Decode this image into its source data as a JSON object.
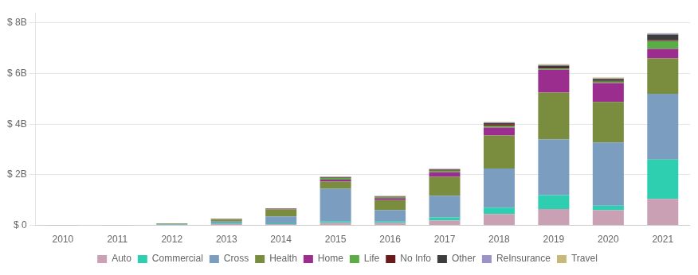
{
  "chart_data": {
    "type": "bar",
    "stacked": true,
    "categories": [
      "2010",
      "2011",
      "2012",
      "2013",
      "2014",
      "2015",
      "2016",
      "2017",
      "2018",
      "2019",
      "2020",
      "2021"
    ],
    "series": [
      {
        "name": "Auto",
        "color": "#c9a0b4",
        "values": [
          0.01,
          0.01,
          0.02,
          0.05,
          0.05,
          0.1,
          0.1,
          0.2,
          0.45,
          0.65,
          0.6,
          1.05
        ]
      },
      {
        "name": "Commercial",
        "color": "#2ecfb1",
        "values": [
          0.0,
          0.0,
          0.01,
          0.02,
          0.03,
          0.05,
          0.05,
          0.12,
          0.25,
          0.55,
          0.18,
          1.55
        ]
      },
      {
        "name": "Cross",
        "color": "#7b9ec0",
        "values": [
          0.01,
          0.01,
          0.02,
          0.08,
          0.28,
          1.3,
          0.45,
          0.85,
          1.55,
          2.2,
          2.5,
          2.6
        ]
      },
      {
        "name": "Health",
        "color": "#7a8c3e",
        "values": [
          0.0,
          0.0,
          0.02,
          0.08,
          0.28,
          0.28,
          0.4,
          0.75,
          1.3,
          1.85,
          1.6,
          1.4
        ]
      },
      {
        "name": "Home",
        "color": "#9b2d8e",
        "values": [
          0.0,
          0.0,
          0.01,
          0.02,
          0.02,
          0.08,
          0.08,
          0.18,
          0.32,
          0.9,
          0.75,
          0.38
        ]
      },
      {
        "name": "Life",
        "color": "#5aac44",
        "values": [
          0.0,
          0.0,
          0.0,
          0.01,
          0.01,
          0.06,
          0.05,
          0.06,
          0.06,
          0.05,
          0.05,
          0.3
        ]
      },
      {
        "name": "No Info",
        "color": "#6b1a1a",
        "values": [
          0.0,
          0.0,
          0.0,
          0.01,
          0.01,
          0.02,
          0.01,
          0.04,
          0.07,
          0.04,
          0.03,
          0.04
        ]
      },
      {
        "name": "Other",
        "color": "#3d3d3d",
        "values": [
          0.0,
          0.0,
          0.0,
          0.0,
          0.0,
          0.02,
          0.01,
          0.02,
          0.05,
          0.08,
          0.08,
          0.22
        ]
      },
      {
        "name": "ReInsurance",
        "color": "#9b92c7",
        "values": [
          0.0,
          0.0,
          0.0,
          0.0,
          0.0,
          0.01,
          0.01,
          0.01,
          0.02,
          0.02,
          0.02,
          0.04
        ]
      },
      {
        "name": "Travel",
        "color": "#c8b87a",
        "values": [
          0.0,
          0.0,
          0.0,
          0.0,
          0.0,
          0.01,
          0.01,
          0.01,
          0.02,
          0.03,
          0.04,
          0.02
        ]
      }
    ],
    "ylim": [
      0,
      8.4
    ],
    "yticks": [
      {
        "value": 0,
        "label": "$ 0"
      },
      {
        "value": 2,
        "label": "$ 2B"
      },
      {
        "value": 4,
        "label": "$ 4B"
      },
      {
        "value": 6,
        "label": "$ 6B"
      },
      {
        "value": 8,
        "label": "$ 8B"
      }
    ],
    "grid": true,
    "legend": "bottom"
  }
}
